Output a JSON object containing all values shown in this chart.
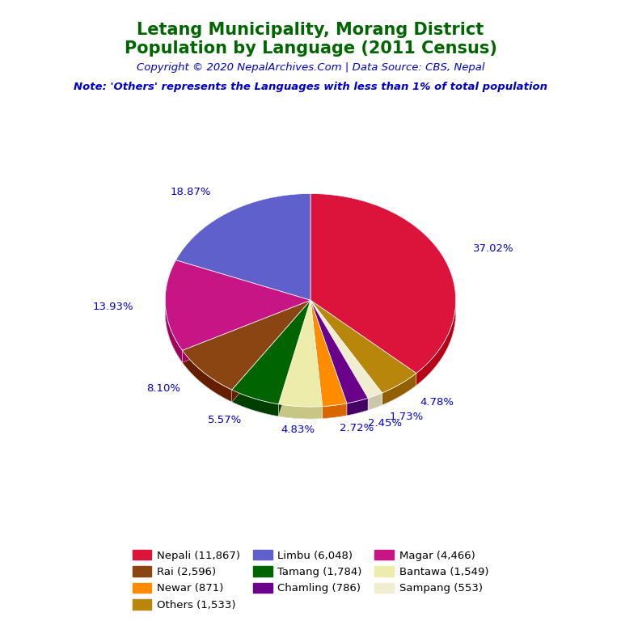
{
  "title_line1": "Letang Municipality, Morang District",
  "title_line2": "Population by Language (2011 Census)",
  "copyright": "Copyright © 2020 NepalArchives.Com | Data Source: CBS, Nepal",
  "note": "Note: 'Others' represents the Languages with less than 1% of total population",
  "title_color": "#006600",
  "copyright_color": "#0000cc",
  "note_color": "#0000cc",
  "label_color": "#0000cc",
  "pie_order_labels": [
    "Nepali",
    "Others",
    "Sampang",
    "Chamling",
    "Newar",
    "Bantawa",
    "Tamang",
    "Rai",
    "Magar",
    "Limbu"
  ],
  "pie_order_values": [
    11867,
    1533,
    553,
    786,
    871,
    1549,
    1784,
    2596,
    4466,
    6048
  ],
  "pie_order_pcts": [
    "37.02%",
    "4.78%",
    "1.73%",
    "2.45%",
    "2.72%",
    "4.83%",
    "5.57%",
    "8.10%",
    "13.93%",
    "18.87%"
  ],
  "pie_order_colors": [
    "#DC143C",
    "#B8860B",
    "#F0EDD0",
    "#6B008B",
    "#FF8C00",
    "#EEECAA",
    "#006400",
    "#8B4513",
    "#C71585",
    "#6060CC"
  ],
  "legend_labels": [
    "Nepali (11,867)",
    "Rai (2,596)",
    "Newar (871)",
    "Others (1,533)",
    "Limbu (6,048)",
    "Tamang (1,784)",
    "Chamling (786)",
    "Magar (4,466)",
    "Bantawa (1,549)",
    "Sampang (553)"
  ],
  "legend_colors": [
    "#DC143C",
    "#8B4513",
    "#FF8C00",
    "#B8860B",
    "#6060CC",
    "#006400",
    "#6B008B",
    "#C71585",
    "#EEECAA",
    "#F0EDD0"
  ],
  "background_color": "#ffffff"
}
